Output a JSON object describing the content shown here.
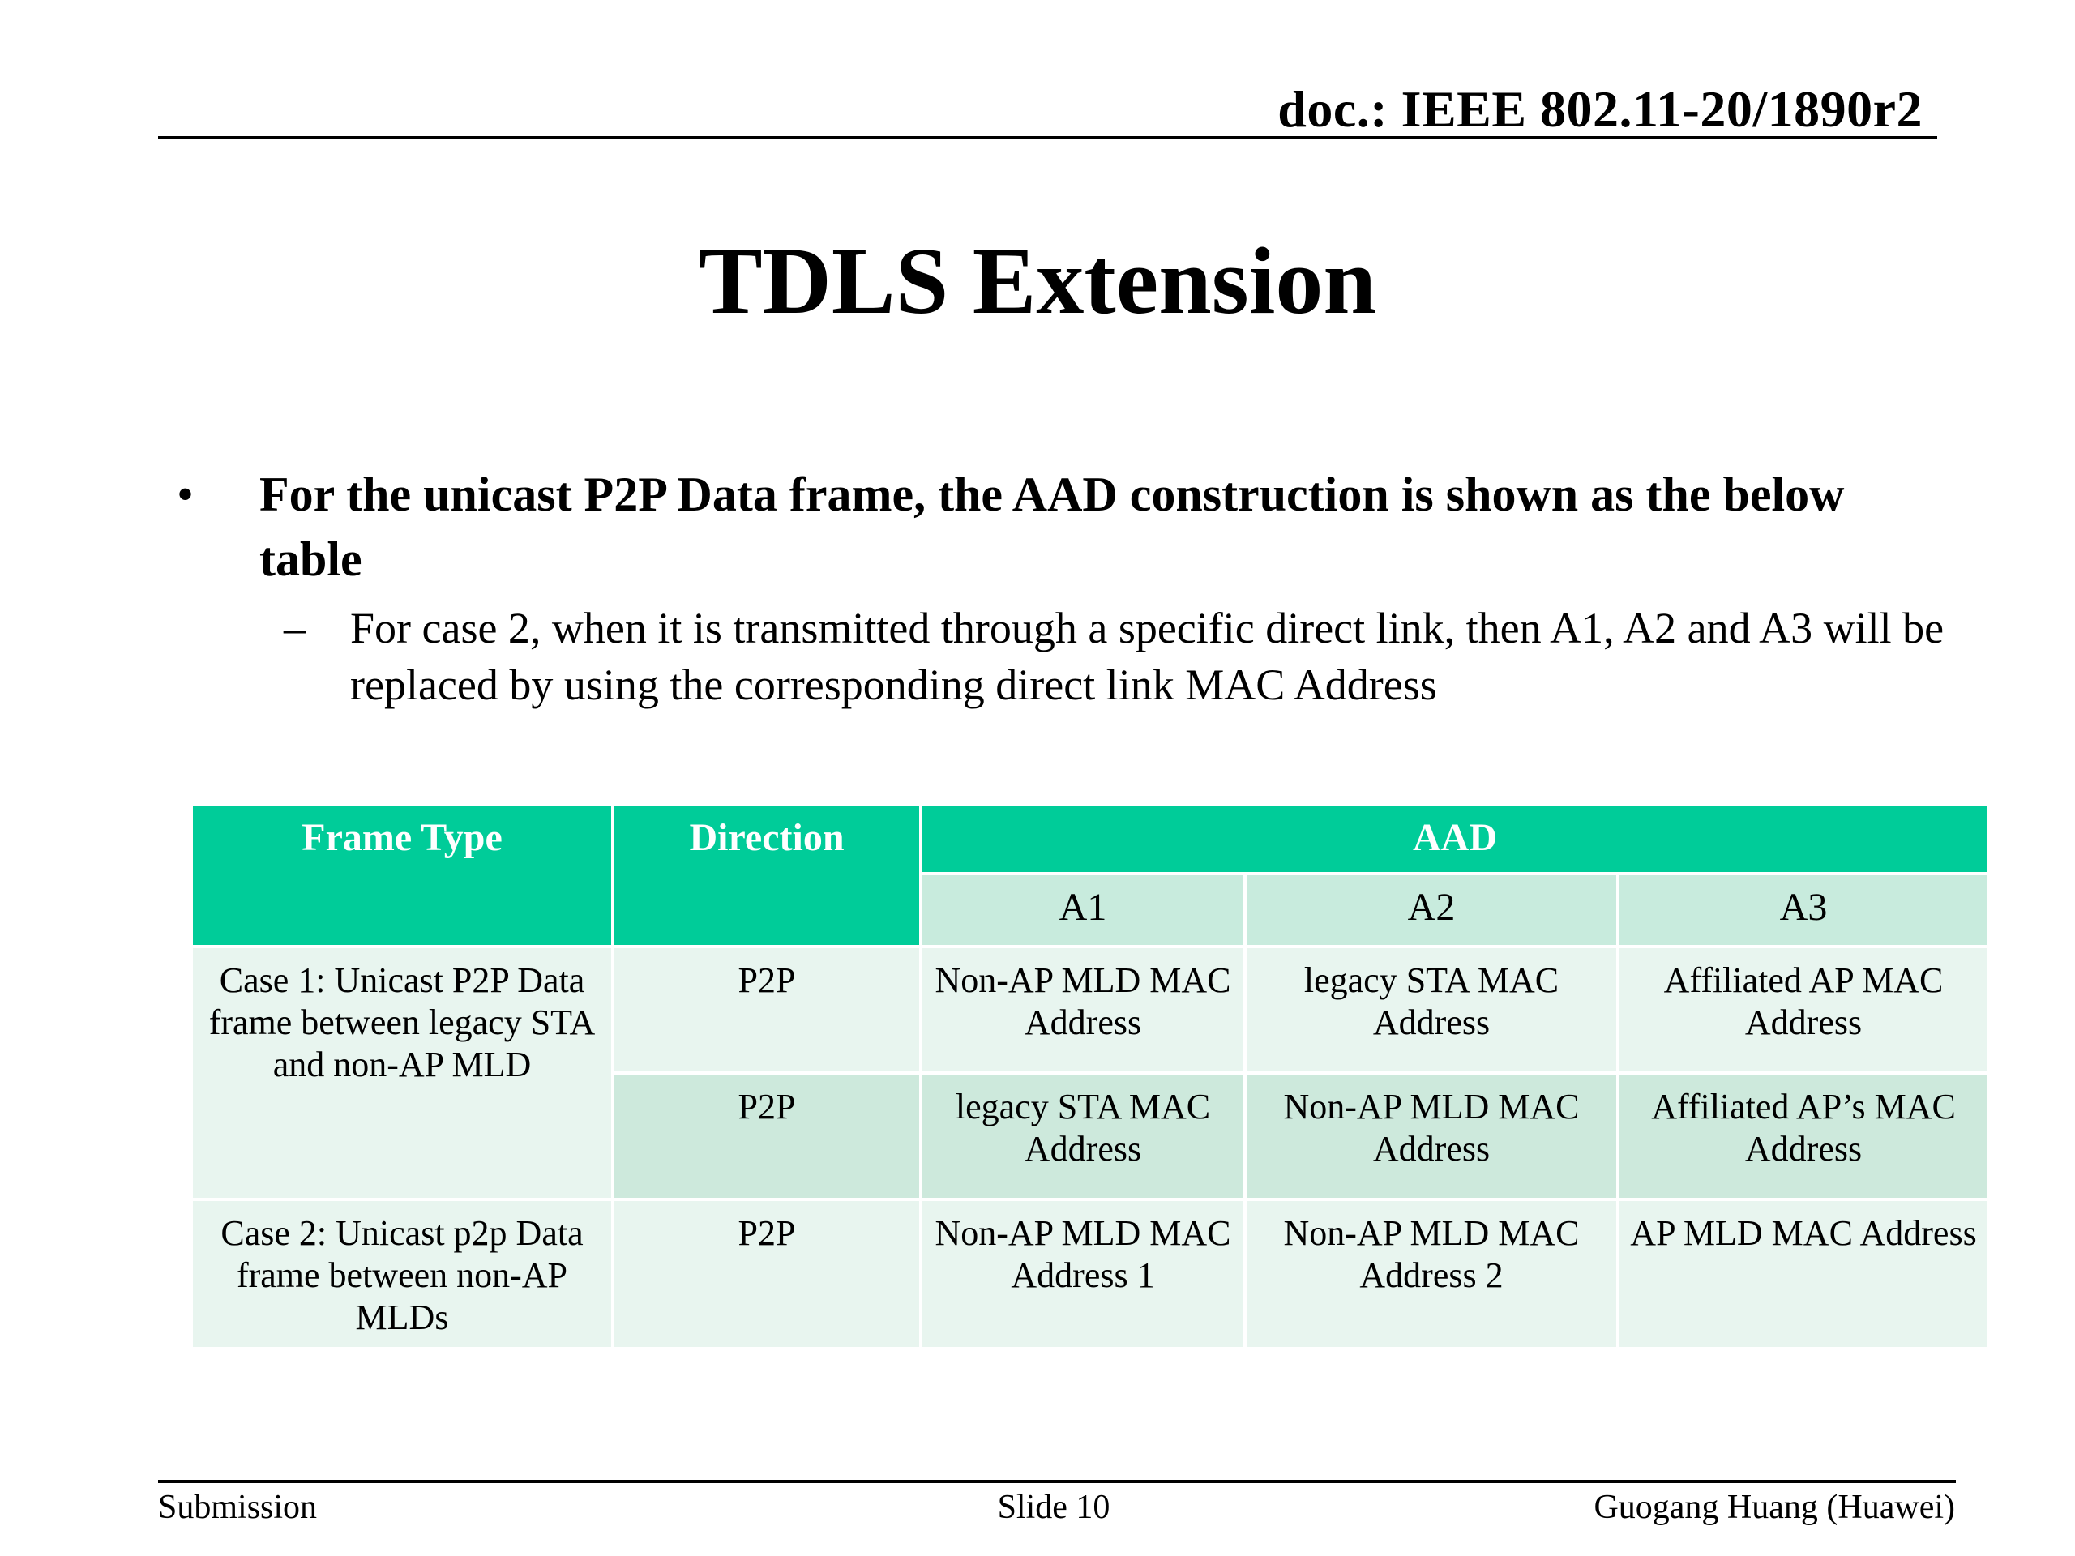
{
  "header": {
    "doc_id": "doc.: IEEE 802.11-20/1890r2"
  },
  "title": "TDLS Extension",
  "bullets": {
    "level1": "For the unicast P2P Data frame, the AAD construction is shown as the below table",
    "level2": "For case 2, when it is transmitted through a specific direct link, then A1, A2 and A3 will be replaced by using the corresponding direct link MAC Address"
  },
  "table": {
    "headers": {
      "frame_type": "Frame Type",
      "direction": "Direction",
      "aad": "AAD",
      "a1": "A1",
      "a2": "A2",
      "a3": "A3"
    },
    "rows": [
      {
        "frame_type": "Case 1: Unicast P2P Data frame between legacy STA and non-AP MLD",
        "direction": "P2P",
        "a1": "Non-AP MLD MAC Address",
        "a2": "legacy STA MAC Address",
        "a3": "Affiliated AP MAC Address"
      },
      {
        "direction": "P2P",
        "a1": "legacy STA MAC Address",
        "a2": "Non-AP MLD MAC Address",
        "a3": "Affiliated AP’s MAC Address"
      },
      {
        "frame_type": "Case 2: Unicast p2p Data frame between non-AP MLDs",
        "direction": "P2P",
        "a1": "Non-AP MLD MAC Address 1",
        "a2": "Non-AP MLD MAC Address 2",
        "a3": "AP MLD MAC Address"
      }
    ]
  },
  "footer": {
    "left": "Submission",
    "center": "Slide 10",
    "right": "Guogang Huang (Huawei)"
  }
}
